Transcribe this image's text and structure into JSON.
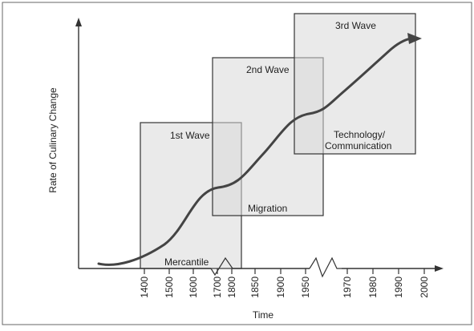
{
  "chart_data": {
    "type": "line",
    "title": "",
    "xlabel": "Time",
    "ylabel": "Rate of Culinary Change",
    "x_ticks": [
      "1400",
      "1500",
      "1600",
      "1700",
      "1800",
      "1850",
      "1900",
      "1950",
      "1970",
      "1980",
      "1990",
      "2000"
    ],
    "waves": [
      {
        "name": "1st Wave",
        "theme": "Mercantile"
      },
      {
        "name": "2nd Wave",
        "theme": "Migration"
      },
      {
        "name": "3rd Wave",
        "theme": "Technology/\nCommunication"
      }
    ],
    "curve_color": "#444444",
    "box_color": "#d9d9d9"
  }
}
